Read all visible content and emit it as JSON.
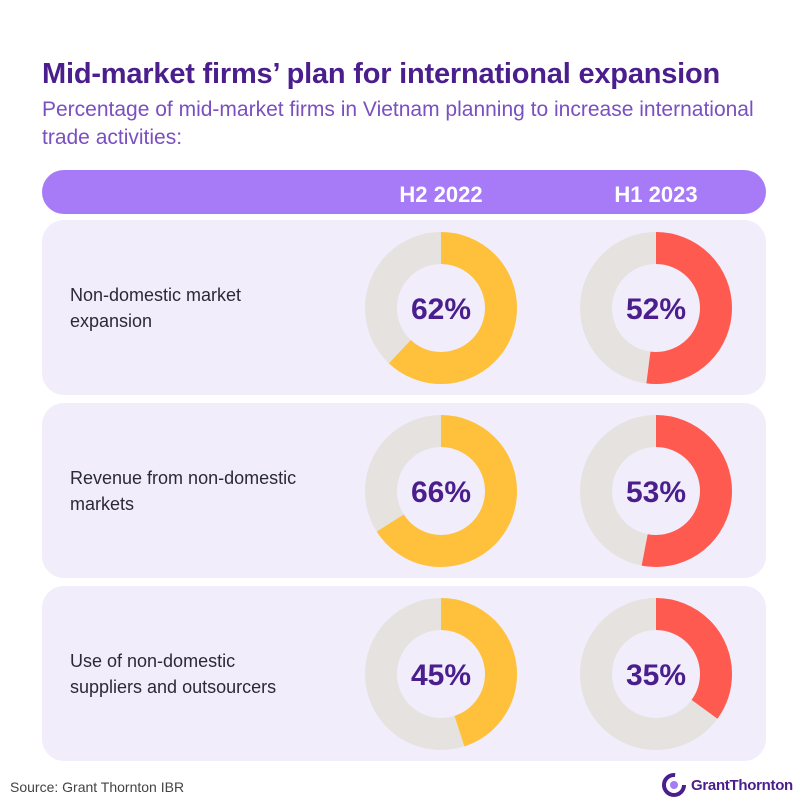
{
  "title": "Mid-market firms’ plan for international expansion",
  "subtitle": "Percentage of mid-market firms in Vietnam planning to increase international trade activities:",
  "source": "Source: Grant Thornton IBR",
  "brand": "GrantThornton",
  "colors": {
    "header": "#a77af7",
    "title": "#4a1e8c",
    "h2_2022": "#ffc13b",
    "h1_2023": "#ff5a50",
    "track": "#e6e2df",
    "row_bg": "#f1edfb"
  },
  "chart_data": {
    "type": "donut",
    "series": [
      {
        "name": "H2 2022",
        "values": [
          62,
          66,
          45
        ]
      },
      {
        "name": "H1 2023",
        "values": [
          52,
          53,
          35
        ]
      }
    ],
    "categories": [
      "Non-domestic market expansion",
      "Revenue from non-domestic markets",
      "Use of non-domestic suppliers and outsourcers"
    ],
    "category_lines": [
      [
        "Non-domestic market",
        "expansion"
      ],
      [
        "Revenue from non-domestic",
        "markets"
      ],
      [
        "Use of non-domestic",
        "suppliers and outsourcers"
      ]
    ],
    "labels": [
      [
        "62%",
        "66%",
        "45%"
      ],
      [
        "52%",
        "53%",
        "35%"
      ]
    ],
    "unit": "%",
    "range": [
      0,
      100
    ]
  }
}
